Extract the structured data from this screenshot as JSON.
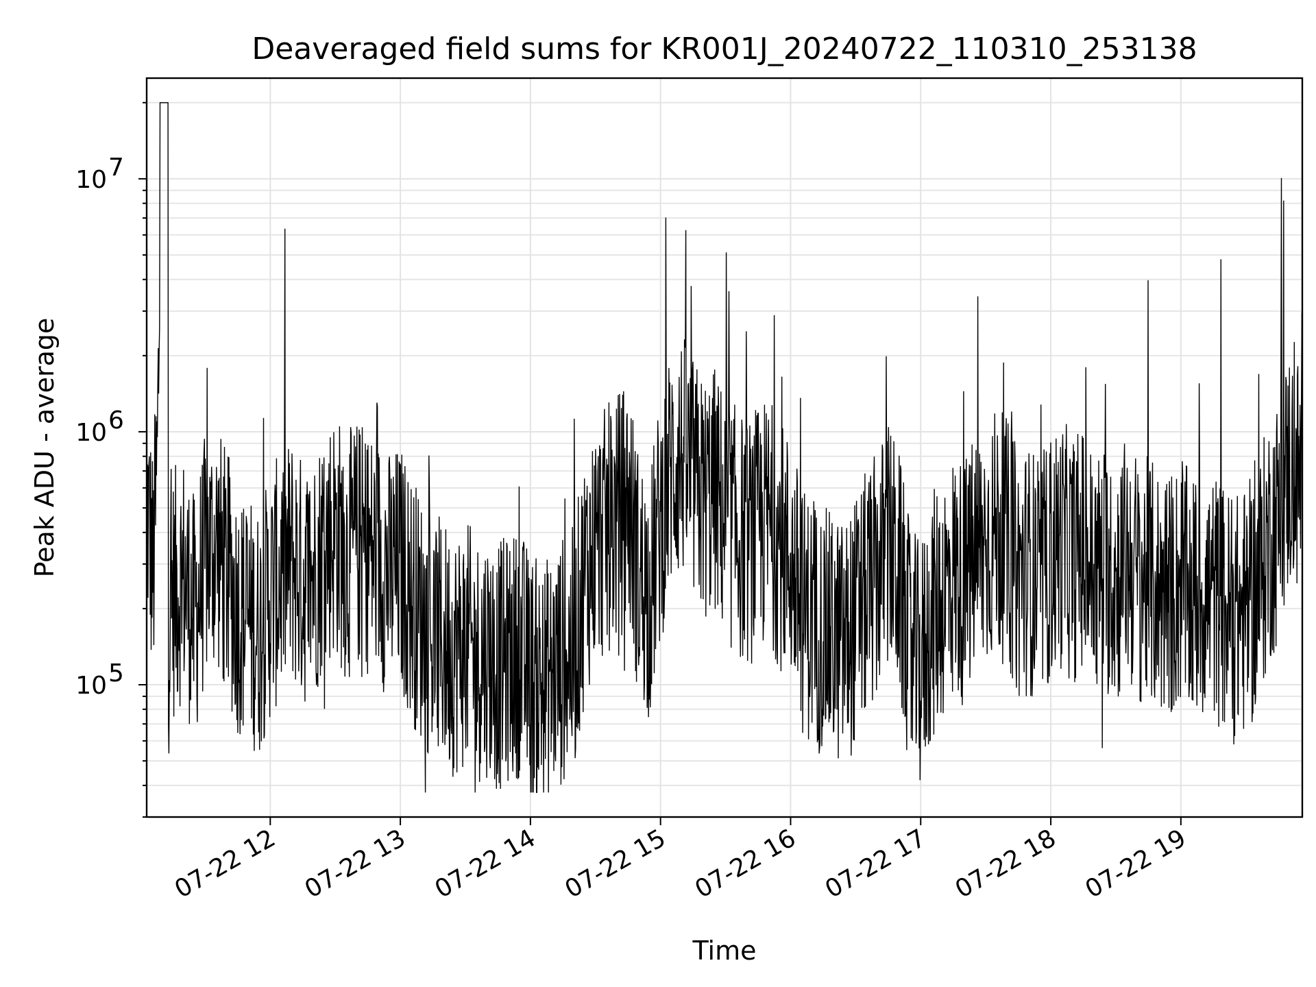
{
  "chart_data": {
    "type": "line",
    "title": "Deaveraged field sums for KR001J_20240722_110310_253138",
    "xlabel": "Time",
    "ylabel": "Peak ADU - average",
    "yscale": "log",
    "ylim": [
      30000,
      25000000
    ],
    "xlim": [
      "2024-07-22 11:03",
      "2024-07-22 19:56"
    ],
    "grid": true,
    "x_ticks": [
      {
        "time": "2024-07-22 12:00",
        "label": "07-22 12"
      },
      {
        "time": "2024-07-22 13:00",
        "label": "07-22 13"
      },
      {
        "time": "2024-07-22 14:00",
        "label": "07-22 14"
      },
      {
        "time": "2024-07-22 15:00",
        "label": "07-22 15"
      },
      {
        "time": "2024-07-22 16:00",
        "label": "07-22 16"
      },
      {
        "time": "2024-07-22 17:00",
        "label": "07-22 17"
      },
      {
        "time": "2024-07-22 18:00",
        "label": "07-22 18"
      },
      {
        "time": "2024-07-22 19:00",
        "label": "07-22 19"
      }
    ],
    "y_ticks": [
      {
        "value": 100000,
        "base": "10",
        "exp": "5"
      },
      {
        "value": 1000000,
        "base": "10",
        "exp": "6"
      },
      {
        "value": 10000000,
        "base": "10",
        "exp": "7"
      }
    ],
    "series": [
      {
        "color": "#000000",
        "times": [
          "2024-07-22 11:03",
          "2024-07-22 11:06",
          "2024-07-22 11:08",
          "2024-07-22 11:10",
          "2024-07-22 11:12",
          "2024-07-22 11:15",
          "2024-07-22 11:20",
          "2024-07-22 11:25",
          "2024-07-22 11:30",
          "2024-07-22 11:35",
          "2024-07-22 11:40",
          "2024-07-22 11:45",
          "2024-07-22 11:50",
          "2024-07-22 11:55",
          "2024-07-22 12:00",
          "2024-07-22 12:05",
          "2024-07-22 12:10",
          "2024-07-22 12:15",
          "2024-07-22 12:20",
          "2024-07-22 12:25",
          "2024-07-22 12:30",
          "2024-07-22 12:35",
          "2024-07-22 12:40",
          "2024-07-22 12:45",
          "2024-07-22 12:50",
          "2024-07-22 12:55",
          "2024-07-22 13:00",
          "2024-07-22 13:05",
          "2024-07-22 13:10",
          "2024-07-22 13:15",
          "2024-07-22 13:20",
          "2024-07-22 13:25",
          "2024-07-22 13:30",
          "2024-07-22 13:35",
          "2024-07-22 13:40",
          "2024-07-22 13:45",
          "2024-07-22 13:50",
          "2024-07-22 13:55",
          "2024-07-22 14:00",
          "2024-07-22 14:05",
          "2024-07-22 14:10",
          "2024-07-22 14:15",
          "2024-07-22 14:20",
          "2024-07-22 14:25",
          "2024-07-22 14:30",
          "2024-07-22 14:35",
          "2024-07-22 14:40",
          "2024-07-22 14:45",
          "2024-07-22 14:50",
          "2024-07-22 14:55",
          "2024-07-22 15:00",
          "2024-07-22 15:05",
          "2024-07-22 15:10",
          "2024-07-22 15:15",
          "2024-07-22 15:20",
          "2024-07-22 15:25",
          "2024-07-22 15:30",
          "2024-07-22 15:35",
          "2024-07-22 15:40",
          "2024-07-22 15:45",
          "2024-07-22 15:50",
          "2024-07-22 15:55",
          "2024-07-22 16:00",
          "2024-07-22 16:05",
          "2024-07-22 16:10",
          "2024-07-22 16:15",
          "2024-07-22 16:20",
          "2024-07-22 16:25",
          "2024-07-22 16:30",
          "2024-07-22 16:35",
          "2024-07-22 16:40",
          "2024-07-22 16:45",
          "2024-07-22 16:50",
          "2024-07-22 16:55",
          "2024-07-22 17:00",
          "2024-07-22 17:05",
          "2024-07-22 17:10",
          "2024-07-22 17:15",
          "2024-07-22 17:20",
          "2024-07-22 17:25",
          "2024-07-22 17:30",
          "2024-07-22 17:35",
          "2024-07-22 17:40",
          "2024-07-22 17:45",
          "2024-07-22 17:50",
          "2024-07-22 17:55",
          "2024-07-22 18:00",
          "2024-07-22 18:05",
          "2024-07-22 18:10",
          "2024-07-22 18:15",
          "2024-07-22 18:20",
          "2024-07-22 18:25",
          "2024-07-22 18:30",
          "2024-07-22 18:35",
          "2024-07-22 18:40",
          "2024-07-22 18:45",
          "2024-07-22 18:50",
          "2024-07-22 18:55",
          "2024-07-22 19:00",
          "2024-07-22 19:05",
          "2024-07-22 19:10",
          "2024-07-22 19:15",
          "2024-07-22 19:20",
          "2024-07-22 19:25",
          "2024-07-22 19:30",
          "2024-07-22 19:35",
          "2024-07-22 19:40",
          "2024-07-22 19:45",
          "2024-07-22 19:50",
          "2024-07-22 19:56"
        ],
        "values": [
          600000,
          300000,
          900000,
          20000000,
          150000,
          250000,
          300000,
          200000,
          350000,
          400000,
          300000,
          220000,
          200000,
          180000,
          250000,
          300000,
          350000,
          280000,
          300000,
          400000,
          450000,
          350000,
          400000,
          380000,
          350000,
          300000,
          320000,
          250000,
          200000,
          170000,
          160000,
          150000,
          160000,
          140000,
          150000,
          130000,
          140000,
          150000,
          120000,
          110000,
          120000,
          140000,
          150000,
          300000,
          400000,
          450000,
          500000,
          600000,
          300000,
          250000,
          500000,
          800000,
          900000,
          700000,
          600000,
          650000,
          500000,
          450000,
          400000,
          450000,
          500000,
          400000,
          350000,
          220000,
          200000,
          180000,
          170000,
          160000,
          200000,
          250000,
          300000,
          400000,
          300000,
          150000,
          130000,
          200000,
          250000,
          300000,
          280000,
          350000,
          400000,
          450000,
          400000,
          300000,
          320000,
          280000,
          350000,
          400000,
          350000,
          380000,
          300000,
          320000,
          280000,
          350000,
          300000,
          280000,
          260000,
          250000,
          280000,
          240000,
          250000,
          250000,
          220000,
          200000,
          220000,
          250000,
          400000,
          500000,
          800000,
          700000
        ]
      }
    ]
  }
}
